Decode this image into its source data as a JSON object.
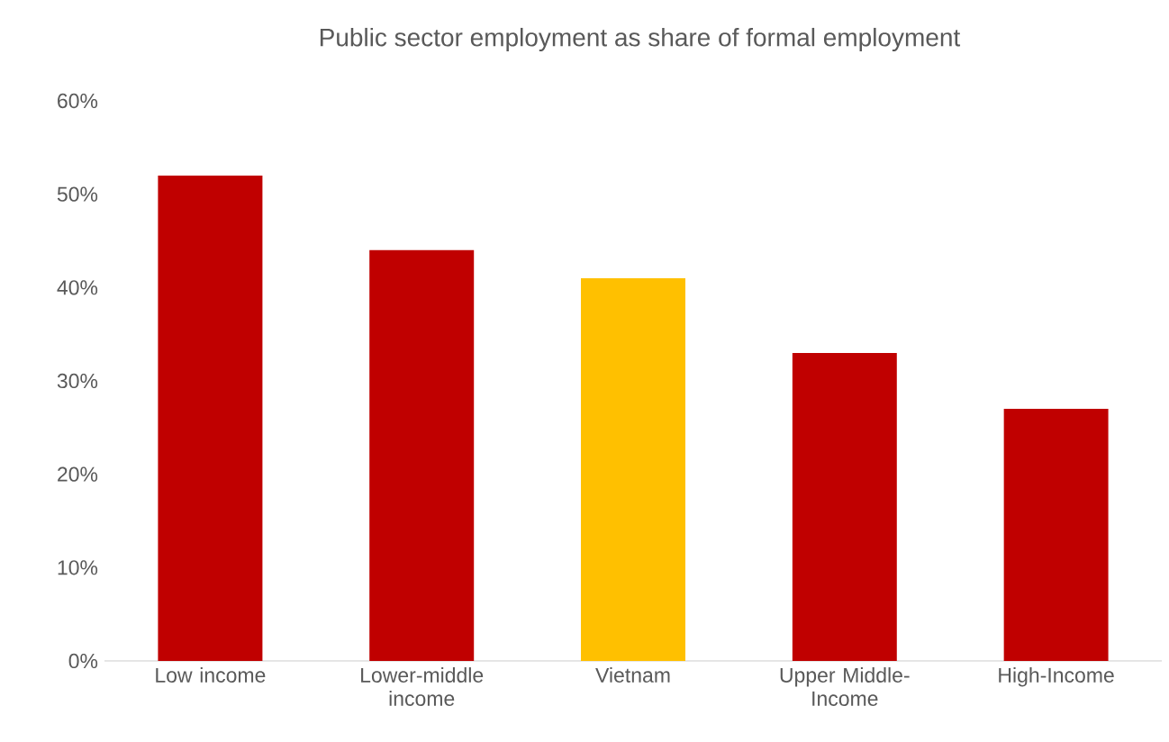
{
  "chart_data": {
    "type": "bar",
    "title": "Public sector employment as share of formal employment",
    "categories": [
      "Low income",
      "Lower-middle income",
      "Vietnam",
      "Upper Middle-Income",
      "High-Income"
    ],
    "values": [
      52,
      44,
      41,
      33,
      27
    ],
    "colors": [
      "#c00000",
      "#c00000",
      "#ffc000",
      "#c00000",
      "#c00000"
    ],
    "ylim": [
      0,
      60
    ],
    "yticks": [
      {
        "value": 0,
        "label": "0%"
      },
      {
        "value": 10,
        "label": "10%"
      },
      {
        "value": 20,
        "label": "20%"
      },
      {
        "value": 30,
        "label": "30%"
      },
      {
        "value": 40,
        "label": "40%"
      },
      {
        "value": 50,
        "label": "50%"
      },
      {
        "value": 60,
        "label": "60%"
      }
    ],
    "grid": false
  }
}
